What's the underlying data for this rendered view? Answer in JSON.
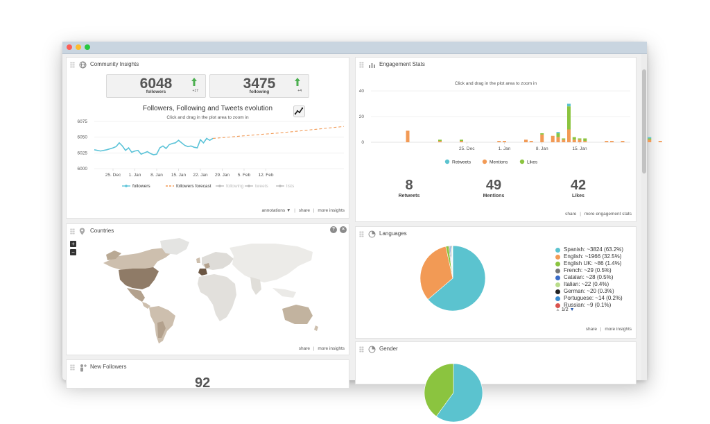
{
  "community": {
    "title": "Community Insights",
    "followers": {
      "value": "6048",
      "label": "followers",
      "delta": "+17"
    },
    "following": {
      "value": "3475",
      "label": "following",
      "delta": "+4"
    },
    "chart_title": "Followers, Following and Tweets evolution",
    "chart_subtitle": "Click and drag in the plot area to zoom in",
    "footer": {
      "annotations": "annotations",
      "share": "share",
      "more": "more insights"
    }
  },
  "engagement": {
    "title": "Engagement Stats",
    "subtitle": "Click and drag in the plot area to zoom in",
    "retweets": {
      "value": "8",
      "label": "Retweets"
    },
    "mentions": {
      "value": "49",
      "label": "Mentions"
    },
    "likes": {
      "value": "42",
      "label": "Likes"
    },
    "footer": {
      "share": "share",
      "more": "more engagement stats"
    }
  },
  "countries": {
    "title": "Countries",
    "zoom_in": "+",
    "zoom_out": "−",
    "help": "?",
    "close": "×",
    "footer": {
      "share": "share",
      "more": "more insights"
    }
  },
  "languages": {
    "title": "Languages",
    "legend": [
      {
        "label": "Spanish: ~3824 (63.2%)",
        "color": "#5bc3cf"
      },
      {
        "label": "English: ~1966 (32.5%)",
        "color": "#f29a55"
      },
      {
        "label": "English UK: ~86 (1.4%)",
        "color": "#8bc43f"
      },
      {
        "label": "French: ~29 (0.5%)",
        "color": "#777777"
      },
      {
        "label": "Catalan: ~28 (0.5%)",
        "color": "#3a6cc8"
      },
      {
        "label": "Italian: ~22 (0.4%)",
        "color": "#b9dc8a"
      },
      {
        "label": "German: ~20 (0.3%)",
        "color": "#222222"
      },
      {
        "label": "Portuguese: ~14 (0.2%)",
        "color": "#3b8bd0"
      },
      {
        "label": "Russian: ~9 (0.1%)",
        "color": "#d9534f"
      }
    ],
    "pager": "1/2",
    "footer": {
      "share": "share",
      "more": "more insights"
    }
  },
  "gender": {
    "title": "Gender"
  },
  "new_followers": {
    "title": "New Followers",
    "count_partial": "92"
  },
  "chart_data": [
    {
      "type": "line",
      "title": "Followers, Following and Tweets evolution",
      "subtitle": "Click and drag in the plot area to zoom in",
      "x_tick_labels": [
        "25. Dec",
        "1. Jan",
        "8. Jan",
        "15. Jan",
        "22. Jan",
        "29. Jan",
        "5. Feb",
        "12. Feb"
      ],
      "ylim": [
        6000,
        6075
      ],
      "y_ticks": [
        6000,
        6025,
        6050,
        6075
      ],
      "grid": true,
      "legend": "bottom",
      "series": [
        {
          "name": "followers",
          "color": "#5bc3d8",
          "x_days": [
            0,
            2,
            4,
            6,
            7,
            8,
            9,
            10,
            11,
            12,
            13,
            14,
            15,
            16,
            17,
            18,
            19,
            20,
            21,
            22,
            23,
            24,
            25,
            26,
            27,
            28,
            29,
            30,
            31,
            32,
            33,
            34,
            35,
            36,
            37,
            38
          ],
          "values": [
            6030,
            6028,
            6030,
            6033,
            6035,
            6041,
            6036,
            6029,
            6033,
            6026,
            6028,
            6029,
            6023,
            6025,
            6027,
            6024,
            6022,
            6023,
            6033,
            6036,
            6032,
            6038,
            6040,
            6041,
            6045,
            6041,
            6037,
            6035,
            6036,
            6034,
            6033,
            6046,
            6041,
            6048,
            6045,
            6048
          ]
        },
        {
          "name": "followers forecast",
          "color": "#f29a55",
          "x_days": [
            38,
            50,
            60,
            70,
            80
          ],
          "values": [
            6048,
            6053,
            6057,
            6062,
            6067
          ]
        },
        {
          "name": "following",
          "color": "#bbbbbb",
          "x_days": [],
          "values": []
        },
        {
          "name": "tweets",
          "color": "#bbbbbb",
          "x_days": [],
          "values": []
        },
        {
          "name": "lists",
          "color": "#bbbbbb",
          "x_days": [],
          "values": []
        }
      ]
    },
    {
      "type": "bar",
      "subtitle": "Click and drag in the plot area to zoom in",
      "x_tick_labels": [
        "25. Dec",
        "1. Jan",
        "8. Jan",
        "15. Jan"
      ],
      "ylim": [
        0,
        40
      ],
      "y_ticks": [
        0,
        20,
        40
      ],
      "stacked": true,
      "legend": "bottom",
      "days": [
        -11,
        -5,
        -1,
        6,
        7,
        11,
        12,
        14,
        16,
        17,
        18,
        19,
        20,
        21,
        22,
        26,
        27,
        29,
        33,
        34,
        36
      ],
      "series": [
        {
          "name": "Retweets",
          "color": "#5bc3cf",
          "values": [
            0,
            0,
            0,
            0,
            0,
            0,
            0,
            0,
            0,
            1,
            0,
            2,
            0,
            0,
            0,
            0,
            0,
            0,
            0,
            1,
            0
          ]
        },
        {
          "name": "Mentions",
          "color": "#f29a55",
          "values": [
            9,
            1,
            1,
            1,
            1,
            2,
            1,
            6,
            5,
            4,
            2,
            10,
            2,
            2,
            1,
            1,
            1,
            1,
            2,
            2,
            1
          ]
        },
        {
          "name": "Likes",
          "color": "#8bc43f",
          "values": [
            0,
            1,
            1,
            0,
            0,
            0,
            0,
            1,
            0,
            3,
            1,
            18,
            2,
            1,
            2,
            0,
            0,
            0,
            1,
            1,
            0
          ]
        }
      ]
    },
    {
      "type": "pie",
      "categories": [
        "Spanish",
        "English",
        "English UK",
        "French",
        "Catalan",
        "Italian",
        "German",
        "Portuguese",
        "Russian"
      ],
      "values": [
        3824,
        1966,
        86,
        29,
        28,
        22,
        20,
        14,
        9
      ],
      "colors": [
        "#5bc3cf",
        "#f29a55",
        "#8bc43f",
        "#777777",
        "#3a6cc8",
        "#b9dc8a",
        "#222222",
        "#3b8bd0",
        "#d9534f"
      ]
    },
    {
      "type": "pie",
      "categories": [
        "",
        ""
      ],
      "values": [
        60,
        40
      ],
      "colors": [
        "#5bc3cf",
        "#8bc43f"
      ]
    }
  ]
}
